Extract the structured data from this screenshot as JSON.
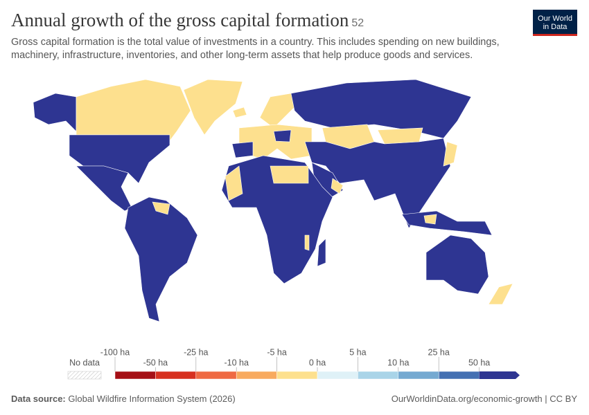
{
  "header": {
    "title": "Annual growth of the gross capital formation",
    "badge": "52",
    "subtitle": [
      "Gross capital formation is the total value of investments in a country. This includes spending on new buildings,",
      "machinery, infrastructure, inventories, and other long-term assets that help produce goods and services."
    ],
    "logo": [
      "Our World",
      "in Data"
    ]
  },
  "legend": {
    "no_data": "No data",
    "colors": [
      "#a50f15",
      "#d7301f",
      "#ef6a43",
      "#f8aa5f",
      "#fde08e",
      "#dff1f7",
      "#a9d4e8",
      "#74a9d1",
      "#4470b2",
      "#2e3592"
    ],
    "labels": [
      "-100 ha",
      "-50 ha",
      "-25 ha",
      "-10 ha",
      "-5 ha",
      "0 ha",
      "5 ha",
      "10 ha",
      "25 ha",
      "50 ha"
    ]
  },
  "footer": {
    "source_label": "Data source:",
    "source": "Global Wildfire Information System (2026)",
    "url": "OurWorldinData.org/economic-growth | CC BY"
  }
}
